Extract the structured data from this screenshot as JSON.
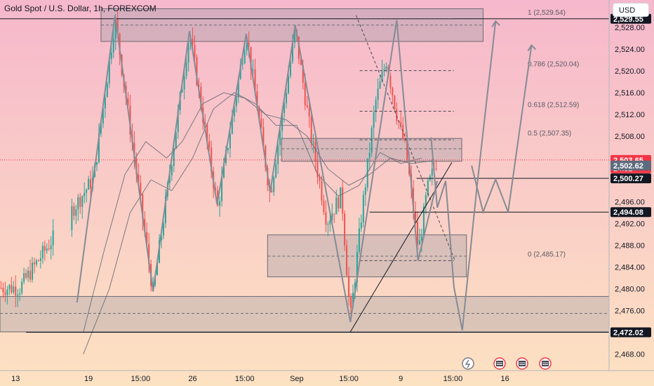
{
  "header": {
    "symbol_title": "Gold Spot / U.S. Dollar, 1h, FOREXCOM",
    "currency": "USD"
  },
  "colors": {
    "bull": "#26a69a",
    "bear": "#ef5350",
    "zone_fill": "#9a9aa2",
    "line_dark": "#131722",
    "path_gray": "#868b95",
    "price_label_bg": "#131722",
    "current_price_bg": "#f23645",
    "bg_top": "#f6b8cc",
    "bg_bottom": "#fde2c2"
  },
  "chart_data": {
    "type": "candlestick",
    "title": "Gold Spot / U.S. Dollar, 1h, FOREXCOM",
    "y_axis": {
      "unit": "USD",
      "range": [
        2465,
        2533
      ],
      "ticks": [
        2468,
        2472,
        2476,
        2480,
        2484,
        2488,
        2492,
        2496,
        2500,
        2504,
        2508,
        2512,
        2516,
        2520,
        2524,
        2528
      ],
      "tick_labels": [
        "2,468.00",
        "2,472.00",
        "2,476.00",
        "2,480.00",
        "2,484.00",
        "2,488.00",
        "2,492.00",
        "2,496.00",
        "2,500.00",
        "2,504.00",
        "2,508.00",
        "2,512.00",
        "2,516.00",
        "2,520.00",
        "2,524.00",
        "2,528.00"
      ]
    },
    "x_axis": {
      "range": [
        -12,
        105
      ],
      "ticks": [
        {
          "label": "13",
          "x": -9
        },
        {
          "label": "19",
          "x": 5
        },
        {
          "label": "15:00",
          "x": 15
        },
        {
          "label": "26",
          "x": 25
        },
        {
          "label": "15:00",
          "x": 35
        },
        {
          "label": "Sep",
          "x": 45
        },
        {
          "label": "15:00",
          "x": 55
        },
        {
          "label": "9",
          "x": 65
        },
        {
          "label": "15:00",
          "x": 75
        },
        {
          "label": "16",
          "x": 85
        }
      ]
    },
    "price_labels": [
      {
        "value": 2529.55,
        "text": "2,529.55",
        "style": "dark"
      },
      {
        "value": 2503.65,
        "text": "2,503.65",
        "sub": "24:02",
        "style": "current"
      },
      {
        "value": 2502.62,
        "text": "2,502.62",
        "style": "slate"
      },
      {
        "value": 2500.27,
        "text": "2,500.27",
        "style": "dark"
      },
      {
        "value": 2494.08,
        "text": "2,494.08",
        "style": "dark"
      },
      {
        "value": 2472.02,
        "text": "2,472.02",
        "style": "dark"
      }
    ],
    "horizontal_lines": [
      {
        "value": 2529.55,
        "x_from": -12
      },
      {
        "value": 2500.27,
        "x_from": 68
      },
      {
        "value": 2494.08,
        "x_from": 59
      },
      {
        "value": 2472.02,
        "x_from": -7
      }
    ],
    "zones": [
      {
        "x0": 7.4,
        "x1": 80.8,
        "y0": 2525.4,
        "y1": 2531.4,
        "mid": 2528.4
      },
      {
        "x0": 42.1,
        "x1": 76.7,
        "y0": 2503.4,
        "y1": 2507.6,
        "mid": 2505.7
      },
      {
        "x0": 39.4,
        "x1": 77.6,
        "y0": 2482.2,
        "y1": 2489.9,
        "mid": 2486.0
      },
      {
        "x0": -12,
        "x1": 105,
        "y0": 2472.1,
        "y1": 2478.6,
        "mid": 2475.5
      }
    ],
    "fibonacci": [
      {
        "label": "1 (2,529.54)",
        "value": 2529.54
      },
      {
        "label": "0.786 (2,520.04)",
        "value": 2520.04
      },
      {
        "label": "0.618 (2,512.59)",
        "value": 2512.59
      },
      {
        "label": "0.5 (2,507.35)",
        "value": 2507.35
      },
      {
        "label": "0 (2,485.17)",
        "value": 2485.17
      }
    ],
    "fib_x_range": [
      57.1,
      75.2
    ],
    "trend_path": [
      {
        "x": 2.8,
        "y": 2477.5
      },
      {
        "x": 10.1,
        "y": 2530.2
      },
      {
        "x": 17.4,
        "y": 2479.5
      },
      {
        "x": 24.4,
        "y": 2527.3
      },
      {
        "x": 29.7,
        "y": 2495.5
      },
      {
        "x": 35.3,
        "y": 2526.8
      },
      {
        "x": 39.9,
        "y": 2497.7
      },
      {
        "x": 44.7,
        "y": 2528.4
      },
      {
        "x": 55.3,
        "y": 2473.9
      },
      {
        "x": 64.2,
        "y": 2529.3
      },
      {
        "x": 68.3,
        "y": 2485.2
      },
      {
        "x": 72.0,
        "y": 2499.8
      }
    ],
    "forecast_path": [
      {
        "x": 70.8,
        "y": 2507.8
      },
      {
        "x": 72.0,
        "y": 2494.9
      },
      {
        "x": 73.6,
        "y": 2499.8
      },
      {
        "x": 75.2,
        "y": 2480.3
      },
      {
        "x": 76.8,
        "y": 2472.4
      },
      {
        "x": 79.6,
        "y": 2498.6
      },
      {
        "x": 83.2,
        "y": 2529.1
      }
    ],
    "forecast_right_path": [
      {
        "x": 78.6,
        "y": 2502.6
      },
      {
        "x": 80.8,
        "y": 2494.1
      },
      {
        "x": 83.2,
        "y": 2500.1
      },
      {
        "x": 85.6,
        "y": 2494.1
      },
      {
        "x": 90.1,
        "y": 2524.7
      }
    ],
    "dashed_path": [
      {
        "x": 56.4,
        "y": 2530.2
      },
      {
        "x": 75.3,
        "y": 2485.4
      }
    ],
    "support_line": [
      {
        "x": 55.3,
        "y": 2472.1
      },
      {
        "x": 74.8,
        "y": 2503.2
      }
    ],
    "anchor_points": [
      {
        "x": -8.2,
        "y": 2480.2
      },
      {
        "x": 6.0,
        "y": 2500.3
      },
      {
        "x": 10.1,
        "y": 2529.6
      },
      {
        "x": 17.4,
        "y": 2479.2
      },
      {
        "x": 24.4,
        "y": 2527.1
      },
      {
        "x": 29.8,
        "y": 2494.9
      },
      {
        "x": 35.3,
        "y": 2527.1
      },
      {
        "x": 39.9,
        "y": 2497.2
      },
      {
        "x": 44.7,
        "y": 2527.4
      },
      {
        "x": 47.7,
        "y": 2508.2
      },
      {
        "x": 50.8,
        "y": 2492.3
      },
      {
        "x": 53.6,
        "y": 2497.4
      },
      {
        "x": 55.3,
        "y": 2474.2
      },
      {
        "x": 57.4,
        "y": 2493.2
      },
      {
        "x": 60.1,
        "y": 2514.1
      },
      {
        "x": 62.2,
        "y": 2521.9
      },
      {
        "x": 64.1,
        "y": 2512.5
      },
      {
        "x": 66.0,
        "y": 2505.2
      },
      {
        "x": 68.4,
        "y": 2486.9
      },
      {
        "x": 70.1,
        "y": 2498.3
      },
      {
        "x": 71.9,
        "y": 2503.6
      }
    ],
    "moving_averages": [
      {
        "name": "",
        "points": [
          [
            4,
            2472
          ],
          [
            8,
            2487
          ],
          [
            12,
            2501
          ],
          [
            16,
            2507
          ],
          [
            20,
            2504
          ],
          [
            23,
            2507
          ],
          [
            27,
            2514
          ],
          [
            31,
            2516
          ],
          [
            35,
            2515
          ],
          [
            39,
            2512
          ],
          [
            43,
            2511
          ],
          [
            47,
            2508
          ],
          [
            51,
            2502
          ],
          [
            55,
            2499
          ],
          [
            59,
            2501
          ],
          [
            63,
            2504
          ],
          [
            67,
            2503
          ],
          [
            71,
            2503.5
          ]
        ]
      },
      {
        "name": "",
        "points": [
          [
            4,
            2468
          ],
          [
            9,
            2480
          ],
          [
            13,
            2494
          ],
          [
            17,
            2500
          ],
          [
            21,
            2498
          ],
          [
            25,
            2504
          ],
          [
            29,
            2513
          ],
          [
            33,
            2516
          ],
          [
            37,
            2514
          ],
          [
            41,
            2510
          ],
          [
            45,
            2510
          ],
          [
            49,
            2501
          ],
          [
            53,
            2497
          ],
          [
            57,
            2499
          ],
          [
            61,
            2505
          ],
          [
            65,
            2503
          ],
          [
            69,
            2504
          ]
        ]
      }
    ]
  },
  "toolbar_icons": [
    "lightning-icon",
    "earnings-flag-icon",
    "economic-calendar-icon",
    "economic-calendar-icon-2"
  ]
}
